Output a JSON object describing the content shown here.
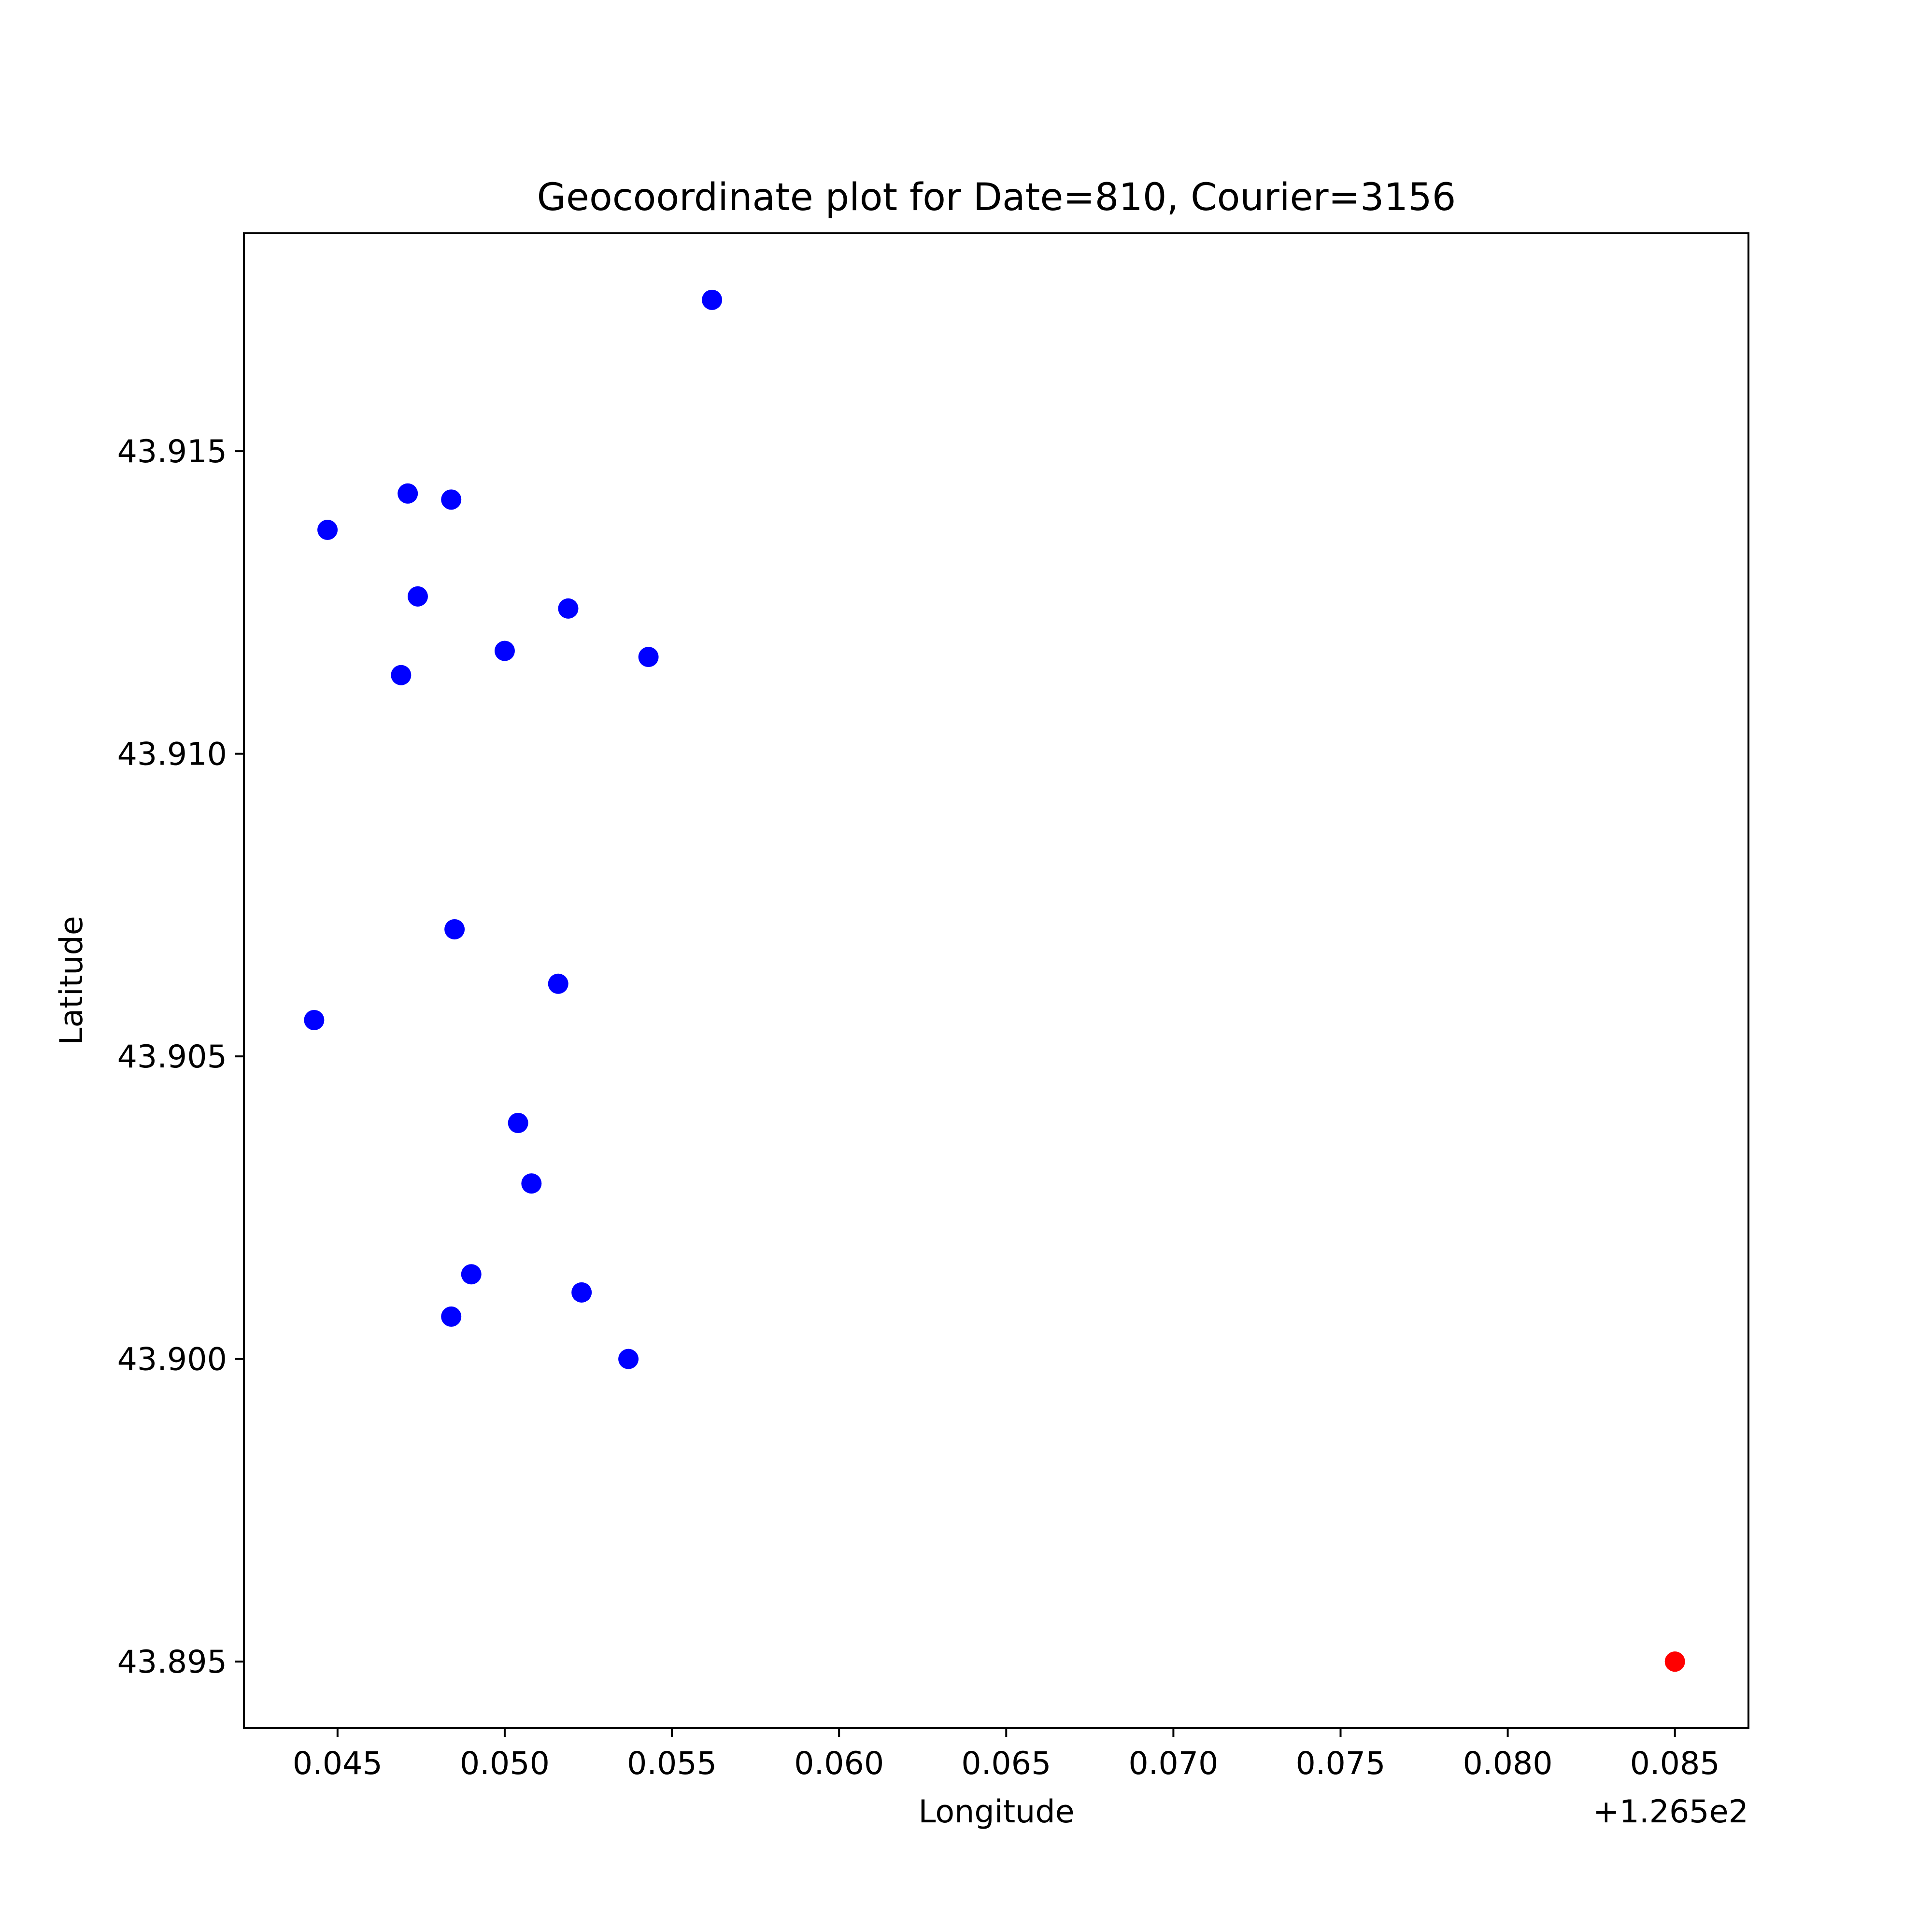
{
  "chart_data": {
    "type": "scatter",
    "title": "Geocoordinate plot for Date=810, Courier=3156",
    "xlabel": "Longitude",
    "ylabel": "Latitude",
    "x_offset_label": "+1.265e2",
    "xlim": [
      126.5422,
      126.5872
    ],
    "ylim": [
      43.8939,
      43.9186
    ],
    "xticks": [
      126.545,
      126.55,
      126.555,
      126.56,
      126.565,
      126.57,
      126.575,
      126.58,
      126.585
    ],
    "xtick_labels": [
      "0.045",
      "0.050",
      "0.055",
      "0.060",
      "0.065",
      "0.070",
      "0.075",
      "0.080",
      "0.085"
    ],
    "yticks": [
      43.895,
      43.9,
      43.905,
      43.91,
      43.915
    ],
    "ytick_labels": [
      "43.895",
      "43.900",
      "43.905",
      "43.910",
      "43.915"
    ],
    "grid": false,
    "colors": {
      "points": "#0000ff",
      "highlight": "#ff0000"
    },
    "series": [
      {
        "color": "#0000ff",
        "points": [
          [
            126.5562,
            43.9175
          ],
          [
            126.5471,
            43.9143
          ],
          [
            126.5484,
            43.9142
          ],
          [
            126.5447,
            43.9137
          ],
          [
            126.5474,
            43.9126
          ],
          [
            126.5519,
            43.9124
          ],
          [
            126.55,
            43.9117
          ],
          [
            126.5543,
            43.9116
          ],
          [
            126.5469,
            43.9113
          ],
          [
            126.5485,
            43.9071
          ],
          [
            126.5516,
            43.9062
          ],
          [
            126.5443,
            43.9056
          ],
          [
            126.5504,
            43.9039
          ],
          [
            126.5508,
            43.9029
          ],
          [
            126.549,
            43.9014
          ],
          [
            126.5523,
            43.9011
          ],
          [
            126.5484,
            43.9007
          ],
          [
            126.5537,
            43.9
          ]
        ]
      },
      {
        "color": "#ff0000",
        "points": [
          [
            126.585,
            43.895
          ]
        ]
      }
    ]
  }
}
